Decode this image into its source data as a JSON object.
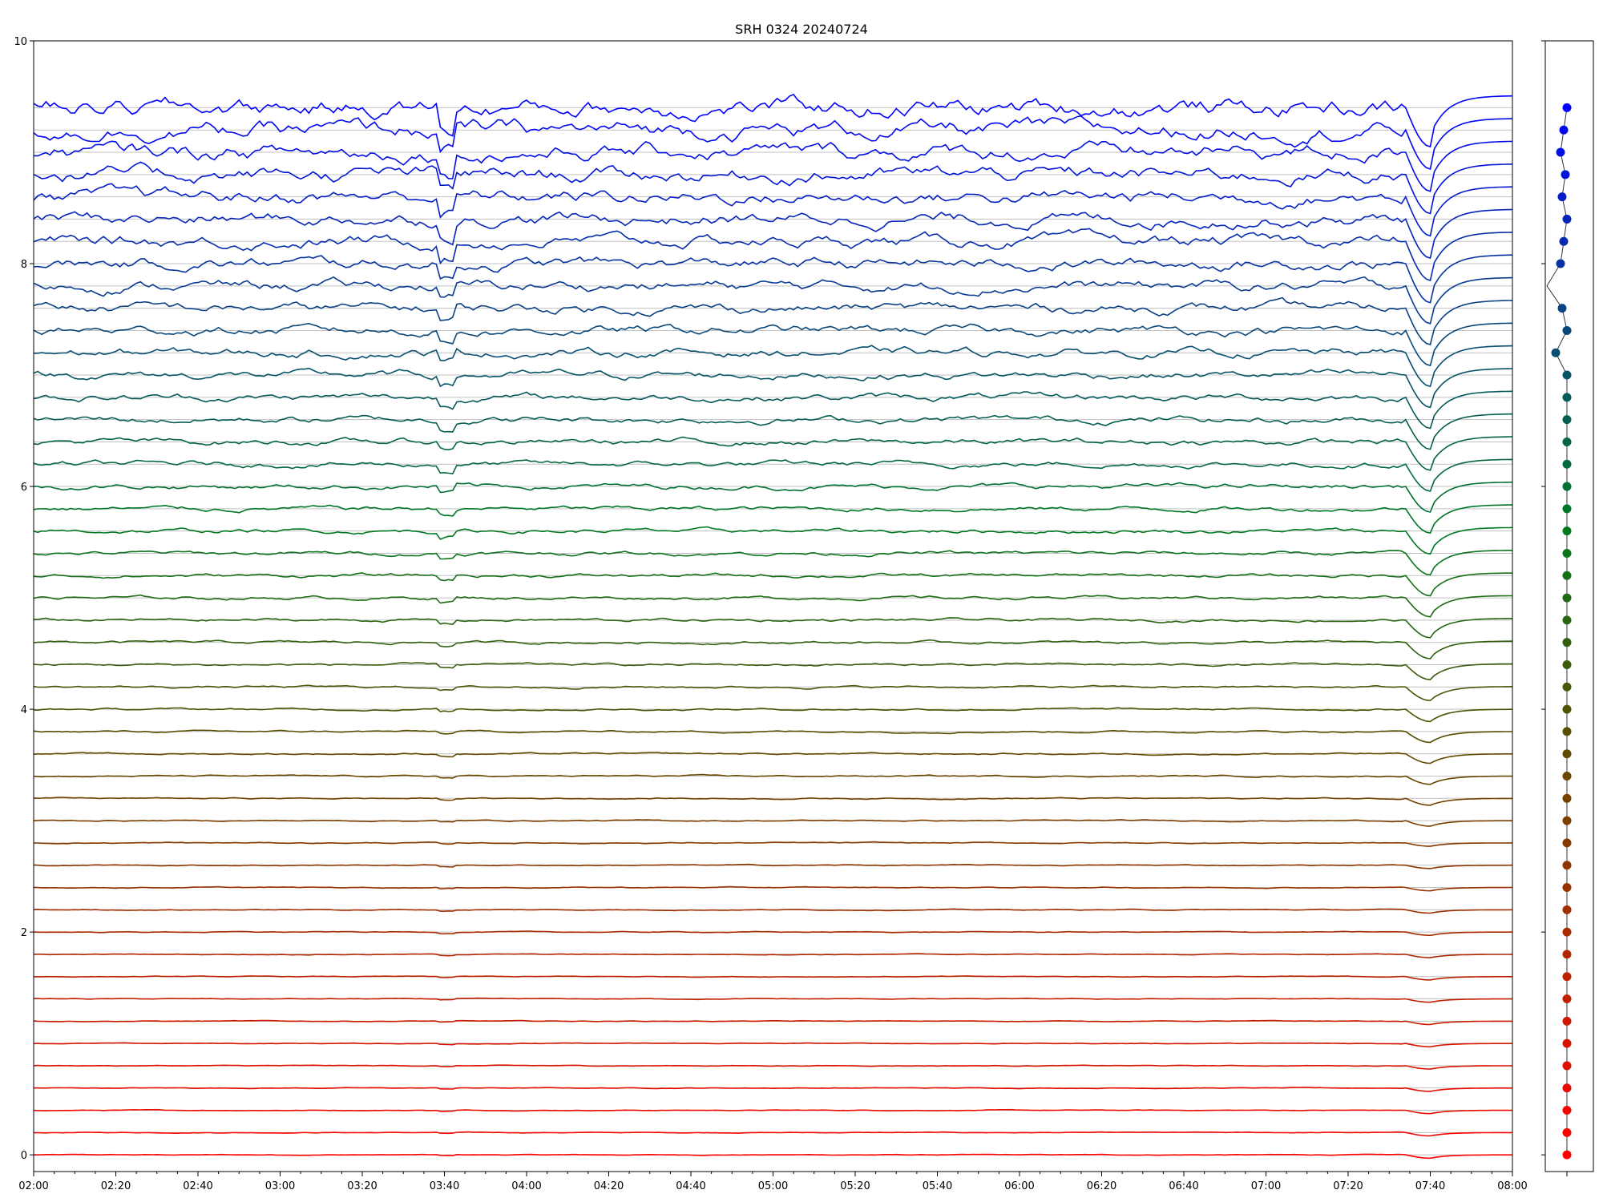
{
  "chart_data": {
    "type": "line",
    "title": "SRH 0324 20240724",
    "xlabel": "",
    "ylabel": "",
    "x_range_minutes": [
      0,
      360
    ],
    "x_ticks": [
      "02:00",
      "02:20",
      "02:40",
      "03:00",
      "03:20",
      "03:40",
      "04:00",
      "04:20",
      "04:40",
      "05:00",
      "05:20",
      "05:40",
      "06:00",
      "06:20",
      "06:40",
      "07:00",
      "07:20",
      "07:40",
      "08:00"
    ],
    "ylim": [
      -0.15,
      10
    ],
    "y_ticks": [
      0,
      2,
      4,
      6,
      8,
      10
    ],
    "grid": "horizontal",
    "series_count": 48,
    "series_spacing": 0.2,
    "color_gradient": [
      "#ff0000",
      "#b02800",
      "#5a4d00",
      "#007a20",
      "#0a4580",
      "#0000ff"
    ],
    "side_panel": {
      "type": "scatter-line",
      "marker_colors": "same as series",
      "kink_at_series": 39
    }
  }
}
